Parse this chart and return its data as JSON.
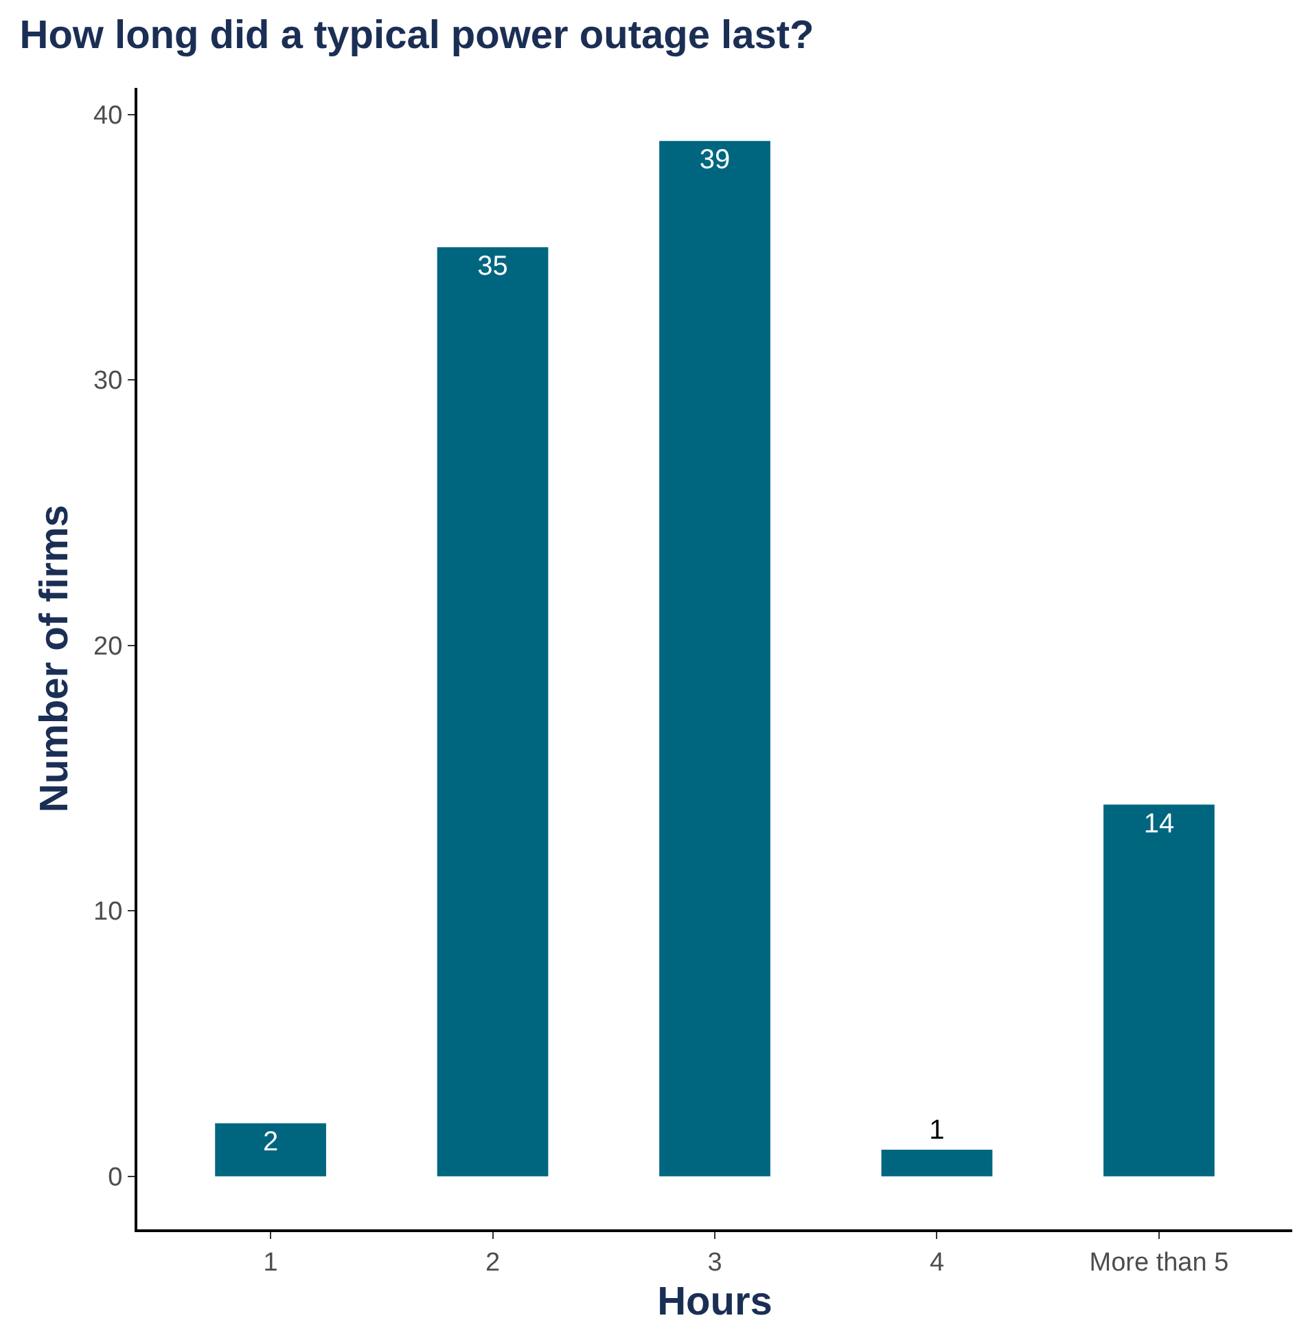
{
  "chart_data": {
    "type": "bar",
    "title": "How long did a typical power outage last?",
    "xlabel": "Hours",
    "ylabel": "Number of firms",
    "categories": [
      "1",
      "2",
      "3",
      "4",
      "More than 5"
    ],
    "values": [
      2,
      35,
      39,
      1,
      14
    ],
    "color": "#006680",
    "ylim": [
      -2,
      41
    ],
    "yticks": [
      0,
      10,
      20,
      30,
      40
    ],
    "data_labels": true
  }
}
